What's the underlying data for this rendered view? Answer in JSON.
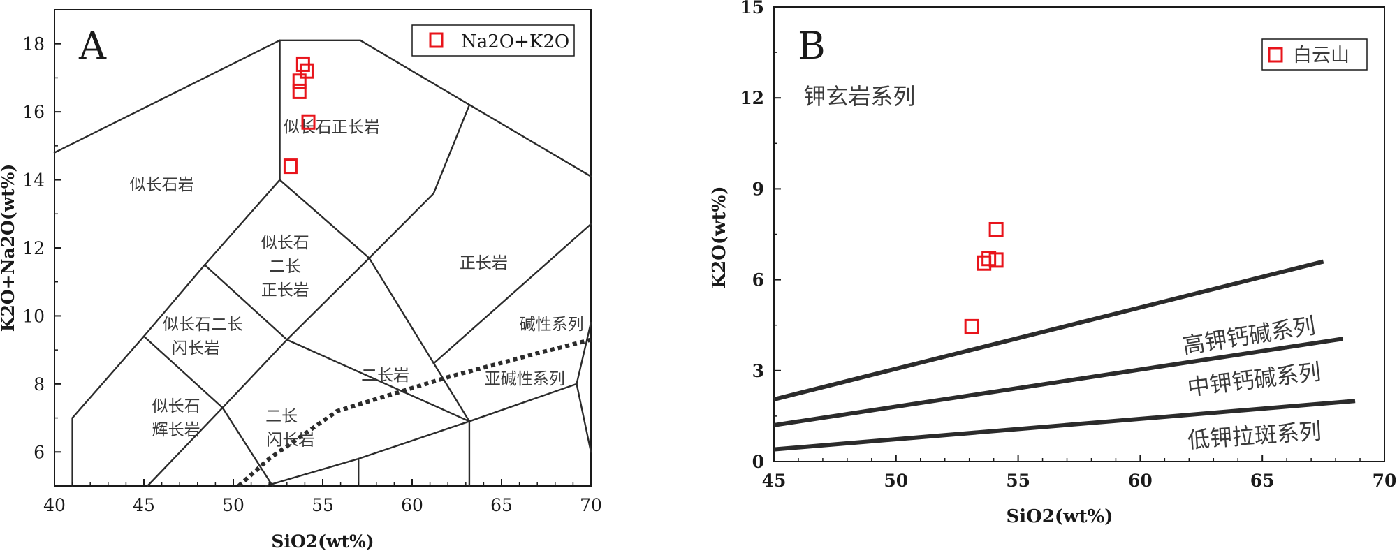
{
  "chart_data": [
    {
      "type": "scatter",
      "panel_label": "A",
      "xlabel": "SiO2(wt%)",
      "ylabel": "K2O+Na2O(wt%)",
      "xlim": [
        40,
        70
      ],
      "ylim": [
        5,
        19
      ],
      "xticks": [
        40,
        45,
        50,
        55,
        60,
        65,
        70
      ],
      "yticks": [
        6,
        8,
        10,
        12,
        14,
        16,
        18
      ],
      "legend": {
        "label": "Na2O+K2O",
        "color": "#e8141b",
        "location": "top-right"
      },
      "series": [
        {
          "name": "Na2O+K2O",
          "marker": "open-square",
          "color": "#e8141b",
          "points": [
            [
              53.9,
              17.4
            ],
            [
              54.1,
              17.2
            ],
            [
              53.7,
              16.9
            ],
            [
              53.7,
              16.6
            ],
            [
              54.2,
              15.7
            ],
            [
              53.2,
              14.4
            ]
          ]
        }
      ],
      "boundaries": [
        [
          [
            40,
            14.8
          ],
          [
            52.6,
            18.1
          ]
        ],
        [
          [
            52.6,
            18.1
          ],
          [
            57.1,
            18.1
          ]
        ],
        [
          [
            57.1,
            18.1
          ],
          [
            70,
            14.1
          ]
        ],
        [
          [
            52.6,
            18.1
          ],
          [
            52.6,
            14.0
          ]
        ],
        [
          [
            52.6,
            14.0
          ],
          [
            57.6,
            11.7
          ]
        ],
        [
          [
            52.6,
            14.0
          ],
          [
            48.4,
            11.5
          ]
        ],
        [
          [
            48.4,
            11.5
          ],
          [
            45,
            9.4
          ]
        ],
        [
          [
            48.4,
            11.5
          ],
          [
            53.0,
            9.3
          ]
        ],
        [
          [
            57.6,
            11.7
          ],
          [
            53.0,
            9.3
          ]
        ],
        [
          [
            45,
            9.4
          ],
          [
            41,
            7.0
          ]
        ],
        [
          [
            41,
            7.0
          ],
          [
            41,
            5.0
          ]
        ],
        [
          [
            45,
            9.4
          ],
          [
            49.4,
            7.3
          ]
        ],
        [
          [
            49.4,
            7.3
          ],
          [
            53.0,
            9.3
          ]
        ],
        [
          [
            49.4,
            7.3
          ],
          [
            45.2,
            5.0
          ]
        ],
        [
          [
            49.4,
            7.3
          ],
          [
            52.2,
            5.0
          ]
        ],
        [
          [
            53.0,
            9.3
          ],
          [
            63.2,
            6.9
          ]
        ],
        [
          [
            57.6,
            11.7
          ],
          [
            63.2,
            6.9
          ]
        ],
        [
          [
            57.6,
            11.7
          ],
          [
            61.2,
            13.6
          ]
        ],
        [
          [
            61.2,
            13.6
          ],
          [
            63.2,
            16.2
          ]
        ],
        [
          [
            57.0,
            5.8
          ],
          [
            63.2,
            6.9
          ]
        ],
        [
          [
            57.0,
            5.8
          ],
          [
            57.0,
            5.0
          ]
        ],
        [
          [
            63.2,
            6.9
          ],
          [
            63.2,
            5.0
          ]
        ],
        [
          [
            63.2,
            6.9
          ],
          [
            69.2,
            8.0
          ]
        ],
        [
          [
            69.2,
            8.0
          ],
          [
            70,
            6.0
          ]
        ],
        [
          [
            69.2,
            8.0
          ],
          [
            70,
            9.8
          ]
        ],
        [
          [
            51.8,
            5.0
          ],
          [
            57.0,
            5.8
          ]
        ],
        [
          [
            61.2,
            8.6
          ],
          [
            70,
            12.7
          ]
        ]
      ],
      "dotted_line": [
        [
          50.3,
          5.0
        ],
        [
          52.0,
          5.8
        ],
        [
          55.8,
          7.2
        ],
        [
          62.0,
          8.2
        ],
        [
          67.0,
          8.9
        ],
        [
          70,
          9.3
        ]
      ],
      "field_labels": [
        {
          "text": "似长石正长岩",
          "x": 55.5,
          "y": 15.4
        },
        {
          "text": "似长石岩",
          "x": 46.0,
          "y": 13.7
        },
        {
          "text": "似长石",
          "x": 52.9,
          "y": 12.0
        },
        {
          "text": "二长",
          "x": 52.9,
          "y": 11.3
        },
        {
          "text": "正长岩",
          "x": 52.9,
          "y": 10.6
        },
        {
          "text": "正长岩",
          "x": 64.0,
          "y": 11.4
        },
        {
          "text": "似长石二长",
          "x": 48.3,
          "y": 9.6
        },
        {
          "text": "闪长岩",
          "x": 47.9,
          "y": 8.9
        },
        {
          "text": "碱性系列",
          "x": 67.8,
          "y": 9.6
        },
        {
          "text": "二长岩",
          "x": 58.5,
          "y": 8.1
        },
        {
          "text": "亚碱性系列",
          "x": 66.3,
          "y": 8.0
        },
        {
          "text": "似长石",
          "x": 46.8,
          "y": 7.2
        },
        {
          "text": "辉长岩",
          "x": 46.8,
          "y": 6.5
        },
        {
          "text": "二长",
          "x": 52.7,
          "y": 6.9
        },
        {
          "text": "闪长岩",
          "x": 53.2,
          "y": 6.2
        }
      ]
    },
    {
      "type": "scatter",
      "panel_label": "B",
      "xlabel": "SiO2(wt%)",
      "ylabel": "K2O(wt%)",
      "xlim": [
        45,
        70
      ],
      "ylim": [
        0,
        15
      ],
      "xticks": [
        45,
        50,
        55,
        60,
        65,
        70
      ],
      "yticks": [
        0,
        3,
        6,
        9,
        12,
        15
      ],
      "legend": {
        "label": "白云山",
        "color": "#e8141b",
        "location": "top-right"
      },
      "series": [
        {
          "name": "白云山",
          "marker": "open-square",
          "color": "#e8141b",
          "points": [
            [
              54.1,
              7.65
            ],
            [
              53.6,
              6.55
            ],
            [
              53.8,
              6.7
            ],
            [
              54.1,
              6.65
            ],
            [
              53.1,
              4.45
            ]
          ]
        }
      ],
      "boundaries": [
        [
          [
            45,
            2.05
          ],
          [
            67.5,
            6.6
          ]
        ],
        [
          [
            45,
            1.2
          ],
          [
            68.3,
            4.05
          ]
        ],
        [
          [
            45,
            0.4
          ],
          [
            68.8,
            2.0
          ]
        ]
      ],
      "field_labels": [
        {
          "text": "钾玄岩系列",
          "x": 48.5,
          "y": 11.8,
          "rotation": 0
        },
        {
          "text": "高钾钙碱系列",
          "x": 64.5,
          "y": 3.9,
          "rotation": -9
        },
        {
          "text": "中钾钙碱系列",
          "x": 64.7,
          "y": 2.45,
          "rotation": -7
        },
        {
          "text": "低钾拉斑系列",
          "x": 64.7,
          "y": 0.6,
          "rotation": -4
        }
      ]
    }
  ]
}
